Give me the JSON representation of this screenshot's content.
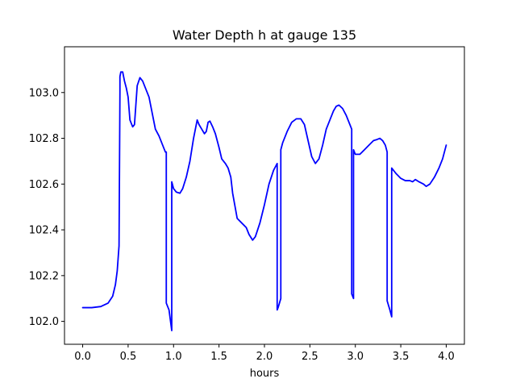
{
  "chart_data": {
    "type": "line",
    "title": "Water Depth h at gauge 135",
    "xlabel": "hours",
    "ylabel": "",
    "xlim": [
      -0.2,
      4.2
    ],
    "ylim": [
      101.9,
      103.2
    ],
    "xticks": [
      0.0,
      0.5,
      1.0,
      1.5,
      2.0,
      2.5,
      3.0,
      3.5,
      4.0
    ],
    "xtick_labels": [
      "0.0",
      "0.5",
      "1.0",
      "1.5",
      "2.0",
      "2.5",
      "3.0",
      "3.5",
      "4.0"
    ],
    "yticks": [
      102.0,
      102.2,
      102.4,
      102.6,
      102.8,
      103.0
    ],
    "ytick_labels": [
      "102.0",
      "102.2",
      "102.4",
      "102.6",
      "102.8",
      "103.0"
    ],
    "grid": false,
    "color": "#0000ff",
    "series": [
      {
        "x": [
          0.0,
          0.1,
          0.2,
          0.28,
          0.33,
          0.36,
          0.38,
          0.4,
          0.41,
          0.41,
          0.42,
          0.44,
          0.46,
          0.48,
          0.5,
          0.52,
          0.55,
          0.57,
          0.6,
          0.63,
          0.66,
          0.7,
          0.73,
          0.77,
          0.8,
          0.84,
          0.88,
          0.91,
          0.92,
          0.92,
          0.95,
          0.98,
          0.98,
          1.0,
          1.03,
          1.07,
          1.1,
          1.14,
          1.18,
          1.22,
          1.26,
          1.28,
          1.31,
          1.34,
          1.36,
          1.38,
          1.4,
          1.43,
          1.46,
          1.5,
          1.53,
          1.57,
          1.6,
          1.63,
          1.65,
          1.7,
          1.75,
          1.8,
          1.83,
          1.87,
          1.9,
          1.95,
          2.0,
          2.05,
          2.1,
          2.14,
          2.14,
          2.15,
          2.18,
          2.18,
          2.2,
          2.25,
          2.3,
          2.35,
          2.4,
          2.44,
          2.48,
          2.52,
          2.56,
          2.6,
          2.64,
          2.68,
          2.72,
          2.76,
          2.79,
          2.82,
          2.86,
          2.9,
          2.94,
          2.96,
          2.96,
          2.98,
          2.98,
          3.0,
          3.05,
          3.1,
          3.15,
          3.2,
          3.24,
          3.27,
          3.3,
          3.33,
          3.35,
          3.35,
          3.38,
          3.4,
          3.4,
          3.45,
          3.5,
          3.55,
          3.6,
          3.63,
          3.66,
          3.7,
          3.75,
          3.78,
          3.82,
          3.87,
          3.92,
          3.96,
          4.0
        ],
        "y": [
          102.06,
          102.06,
          102.065,
          102.08,
          102.11,
          102.16,
          102.22,
          102.33,
          103.0,
          103.07,
          103.09,
          103.09,
          103.05,
          103.02,
          102.98,
          102.88,
          102.85,
          102.86,
          103.03,
          103.065,
          103.05,
          103.01,
          102.98,
          102.9,
          102.84,
          102.81,
          102.77,
          102.74,
          102.74,
          102.08,
          102.05,
          101.96,
          102.61,
          102.58,
          102.565,
          102.56,
          102.58,
          102.63,
          102.7,
          102.8,
          102.88,
          102.86,
          102.84,
          102.82,
          102.83,
          102.87,
          102.875,
          102.85,
          102.82,
          102.76,
          102.71,
          102.69,
          102.67,
          102.63,
          102.56,
          102.45,
          102.43,
          102.41,
          102.38,
          102.355,
          102.37,
          102.43,
          102.51,
          102.6,
          102.66,
          102.69,
          102.05,
          102.06,
          102.1,
          102.75,
          102.78,
          102.83,
          102.87,
          102.885,
          102.885,
          102.86,
          102.79,
          102.72,
          102.69,
          102.71,
          102.77,
          102.84,
          102.88,
          102.92,
          102.94,
          102.945,
          102.93,
          102.9,
          102.86,
          102.84,
          102.12,
          102.1,
          102.75,
          102.73,
          102.73,
          102.75,
          102.77,
          102.79,
          102.795,
          102.8,
          102.79,
          102.77,
          102.74,
          102.09,
          102.05,
          102.02,
          102.67,
          102.645,
          102.625,
          102.615,
          102.615,
          102.61,
          102.62,
          102.61,
          102.6,
          102.59,
          102.6,
          102.63,
          102.67,
          102.71,
          102.77
        ]
      }
    ]
  }
}
